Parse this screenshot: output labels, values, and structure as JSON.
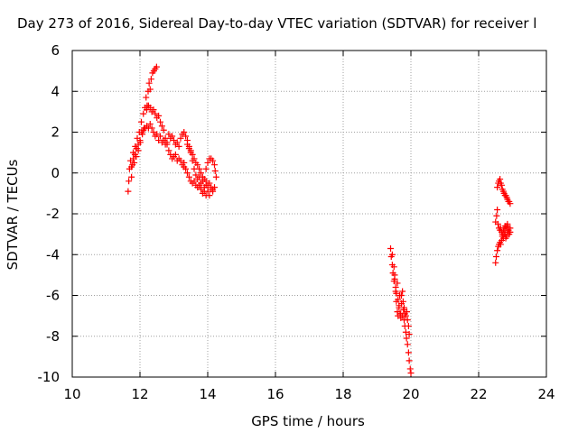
{
  "chart_data": {
    "type": "scatter",
    "title": "Day 273 of 2016, Sidereal Day-to-day VTEC variation (SDTVAR) for receiver l",
    "xlabel": "GPS time / hours",
    "ylabel": "SDTVAR / TECUs",
    "xlim": [
      10,
      24
    ],
    "ylim": [
      -10,
      6
    ],
    "xticks": [
      10,
      12,
      14,
      16,
      18,
      20,
      22,
      24
    ],
    "yticks": [
      -10,
      -8,
      -6,
      -4,
      -2,
      0,
      2,
      4,
      6
    ],
    "xtick_labels": [
      "10",
      "12",
      "14",
      "16",
      "18",
      "20",
      "22",
      "24"
    ],
    "ytick_labels": [
      "-10",
      "-8",
      "-6",
      "-4",
      "-2",
      "0",
      "2",
      "4",
      "6"
    ],
    "grid": true,
    "marker": "+",
    "color": "#ff0000",
    "series": [
      {
        "points": [
          [
            11.65,
            -0.9
          ],
          [
            11.67,
            -0.4
          ],
          [
            11.69,
            0.2
          ],
          [
            11.72,
            0.6
          ],
          [
            11.75,
            -0.2
          ],
          [
            11.78,
            0.4
          ],
          [
            11.8,
            1.0
          ],
          [
            11.83,
            0.5
          ],
          [
            11.86,
            1.3
          ],
          [
            11.89,
            0.8
          ],
          [
            11.92,
            1.7
          ],
          [
            11.95,
            1.1
          ],
          [
            11.98,
            2.0
          ],
          [
            12.01,
            1.5
          ],
          [
            12.04,
            2.5
          ],
          [
            12.07,
            1.9
          ],
          [
            12.1,
            2.9
          ],
          [
            12.12,
            2.2
          ],
          [
            12.15,
            3.2
          ],
          [
            12.18,
            3.7
          ],
          [
            12.21,
            3.3
          ],
          [
            12.24,
            4.0
          ],
          [
            12.27,
            4.4
          ],
          [
            12.3,
            4.1
          ],
          [
            12.33,
            4.6
          ],
          [
            12.37,
            4.9
          ],
          [
            12.41,
            5.0
          ],
          [
            12.45,
            5.1
          ],
          [
            12.49,
            5.2
          ],
          [
            12.2,
            3.1
          ],
          [
            12.25,
            3.3
          ],
          [
            12.3,
            3.2
          ],
          [
            12.35,
            3.0
          ],
          [
            12.4,
            3.1
          ],
          [
            12.45,
            2.9
          ],
          [
            12.5,
            2.7
          ],
          [
            12.55,
            2.8
          ],
          [
            12.6,
            2.5
          ],
          [
            12.65,
            2.3
          ],
          [
            12.7,
            2.1
          ],
          [
            12.75,
            1.7
          ],
          [
            12.8,
            1.4
          ],
          [
            12.85,
            1.1
          ],
          [
            12.9,
            0.9
          ],
          [
            12.95,
            0.7
          ],
          [
            13.0,
            0.8
          ],
          [
            13.05,
            0.9
          ],
          [
            13.1,
            0.6
          ],
          [
            13.15,
            0.7
          ],
          [
            13.2,
            0.6
          ],
          [
            13.25,
            0.4
          ],
          [
            13.3,
            0.5
          ],
          [
            11.75,
            0.3
          ],
          [
            11.8,
            0.7
          ],
          [
            11.85,
            0.9
          ],
          [
            11.9,
            1.2
          ],
          [
            11.95,
            1.4
          ],
          [
            12.0,
            1.6
          ],
          [
            12.05,
            2.0
          ],
          [
            12.1,
            2.1
          ],
          [
            12.15,
            2.2
          ],
          [
            12.2,
            2.3
          ],
          [
            12.25,
            2.2
          ],
          [
            12.3,
            2.4
          ],
          [
            12.35,
            2.2
          ],
          [
            12.4,
            2.0
          ],
          [
            12.45,
            1.8
          ],
          [
            12.5,
            1.9
          ],
          [
            12.55,
            1.6
          ],
          [
            12.6,
            1.8
          ],
          [
            12.65,
            1.5
          ],
          [
            12.7,
            1.6
          ],
          [
            12.75,
            1.4
          ],
          [
            12.8,
            1.5
          ],
          [
            12.85,
            1.9
          ],
          [
            12.9,
            1.7
          ],
          [
            12.95,
            1.8
          ],
          [
            13.0,
            1.6
          ],
          [
            13.05,
            1.4
          ],
          [
            13.1,
            1.5
          ],
          [
            13.15,
            1.3
          ],
          [
            13.2,
            1.7
          ],
          [
            13.25,
            1.9
          ],
          [
            13.3,
            2.0
          ],
          [
            13.35,
            1.8
          ],
          [
            13.4,
            1.6
          ],
          [
            13.45,
            1.3
          ],
          [
            13.5,
            1.0
          ],
          [
            13.55,
            0.6
          ],
          [
            13.6,
            0.2
          ],
          [
            13.65,
            -0.1
          ],
          [
            13.7,
            -0.3
          ],
          [
            13.75,
            -0.2
          ],
          [
            13.8,
            -0.5
          ],
          [
            13.85,
            -0.4
          ],
          [
            13.9,
            -0.7
          ],
          [
            13.95,
            -0.6
          ],
          [
            14.0,
            -0.9
          ],
          [
            14.05,
            -1.1
          ],
          [
            14.1,
            -0.8
          ],
          [
            14.15,
            -0.9
          ],
          [
            14.2,
            -0.7
          ],
          [
            13.4,
            1.4
          ],
          [
            13.45,
            1.2
          ],
          [
            13.5,
            1.1
          ],
          [
            13.55,
            0.9
          ],
          [
            13.6,
            0.7
          ],
          [
            13.65,
            0.5
          ],
          [
            13.7,
            0.4
          ],
          [
            13.75,
            0.2
          ],
          [
            13.8,
            0.0
          ],
          [
            13.85,
            -0.2
          ],
          [
            13.9,
            -0.3
          ],
          [
            13.95,
            -0.4
          ],
          [
            14.0,
            -0.6
          ],
          [
            14.05,
            -0.5
          ],
          [
            14.1,
            -0.7
          ],
          [
            14.15,
            -0.8
          ],
          [
            13.3,
            0.3
          ],
          [
            13.35,
            0.2
          ],
          [
            13.4,
            0.0
          ],
          [
            13.45,
            -0.2
          ],
          [
            13.5,
            -0.4
          ],
          [
            13.55,
            -0.5
          ],
          [
            13.6,
            -0.4
          ],
          [
            13.65,
            -0.6
          ],
          [
            13.7,
            -0.7
          ],
          [
            13.75,
            -0.6
          ],
          [
            13.8,
            -0.8
          ],
          [
            13.85,
            -1.0
          ],
          [
            13.9,
            -0.9
          ],
          [
            13.95,
            -1.1
          ],
          [
            13.95,
            0.2
          ],
          [
            14.0,
            0.5
          ],
          [
            14.05,
            0.7
          ],
          [
            14.1,
            0.7
          ],
          [
            14.15,
            0.6
          ],
          [
            14.2,
            0.4
          ],
          [
            14.22,
            0.1
          ],
          [
            14.25,
            -0.2
          ],
          [
            19.4,
            -3.7
          ],
          [
            19.42,
            -4.1
          ],
          [
            19.45,
            -4.5
          ],
          [
            19.47,
            -4.9
          ],
          [
            19.5,
            -5.3
          ],
          [
            19.52,
            -5.0
          ],
          [
            19.55,
            -5.6
          ],
          [
            19.57,
            -5.9
          ],
          [
            19.6,
            -5.4
          ],
          [
            19.62,
            -6.2
          ],
          [
            19.65,
            -6.6
          ],
          [
            19.67,
            -6.0
          ],
          [
            19.7,
            -6.9
          ],
          [
            19.72,
            -6.4
          ],
          [
            19.75,
            -7.0
          ],
          [
            19.78,
            -6.7
          ],
          [
            19.8,
            -7.2
          ],
          [
            19.82,
            -7.5
          ],
          [
            19.85,
            -7.8
          ],
          [
            19.87,
            -8.1
          ],
          [
            19.9,
            -8.4
          ],
          [
            19.93,
            -8.8
          ],
          [
            19.95,
            -9.2
          ],
          [
            19.98,
            -9.6
          ],
          [
            20.0,
            -9.8
          ],
          [
            19.45,
            -4.0
          ],
          [
            19.5,
            -4.6
          ],
          [
            19.52,
            -5.2
          ],
          [
            19.55,
            -5.8
          ],
          [
            19.57,
            -6.3
          ],
          [
            19.6,
            -6.8
          ],
          [
            19.62,
            -7.0
          ],
          [
            19.65,
            -6.5
          ],
          [
            19.68,
            -6.9
          ],
          [
            19.7,
            -7.1
          ],
          [
            19.72,
            -6.0
          ],
          [
            19.75,
            -5.8
          ],
          [
            19.77,
            -6.3
          ],
          [
            19.8,
            -6.6
          ],
          [
            19.82,
            -6.9
          ],
          [
            19.85,
            -7.0
          ],
          [
            19.88,
            -6.8
          ],
          [
            19.9,
            -7.2
          ],
          [
            19.93,
            -7.5
          ],
          [
            19.95,
            -7.9
          ],
          [
            22.5,
            -4.4
          ],
          [
            22.52,
            -4.1
          ],
          [
            22.55,
            -3.8
          ],
          [
            22.58,
            -3.6
          ],
          [
            22.6,
            -3.5
          ],
          [
            22.63,
            -3.4
          ],
          [
            22.65,
            -3.5
          ],
          [
            22.68,
            -3.3
          ],
          [
            22.7,
            -3.1
          ],
          [
            22.73,
            -3.2
          ],
          [
            22.75,
            -3.0
          ],
          [
            22.78,
            -3.0
          ],
          [
            22.8,
            -3.2
          ],
          [
            22.83,
            -3.1
          ],
          [
            22.85,
            -2.9
          ],
          [
            22.88,
            -2.8
          ],
          [
            22.9,
            -3.0
          ],
          [
            22.93,
            -2.9
          ],
          [
            22.5,
            -2.4
          ],
          [
            22.53,
            -2.1
          ],
          [
            22.55,
            -1.8
          ],
          [
            22.57,
            -2.5
          ],
          [
            22.6,
            -2.7
          ],
          [
            22.63,
            -2.8
          ],
          [
            22.65,
            -2.7
          ],
          [
            22.68,
            -2.9
          ],
          [
            22.7,
            -3.0
          ],
          [
            22.73,
            -2.8
          ],
          [
            22.75,
            -2.7
          ],
          [
            22.78,
            -2.6
          ],
          [
            22.8,
            -2.7
          ],
          [
            22.83,
            -2.6
          ],
          [
            22.85,
            -2.5
          ],
          [
            22.88,
            -2.7
          ],
          [
            22.9,
            -2.9
          ],
          [
            22.93,
            -2.7
          ],
          [
            22.55,
            -0.7
          ],
          [
            22.58,
            -0.5
          ],
          [
            22.6,
            -0.4
          ],
          [
            22.63,
            -0.3
          ],
          [
            22.65,
            -0.5
          ],
          [
            22.68,
            -0.6
          ],
          [
            22.7,
            -0.8
          ],
          [
            22.73,
            -0.9
          ],
          [
            22.75,
            -1.0
          ],
          [
            22.78,
            -1.1
          ],
          [
            22.8,
            -1.1
          ],
          [
            22.83,
            -1.2
          ],
          [
            22.85,
            -1.3
          ],
          [
            22.88,
            -1.4
          ],
          [
            22.9,
            -1.4
          ],
          [
            22.93,
            -1.5
          ]
        ]
      }
    ]
  }
}
